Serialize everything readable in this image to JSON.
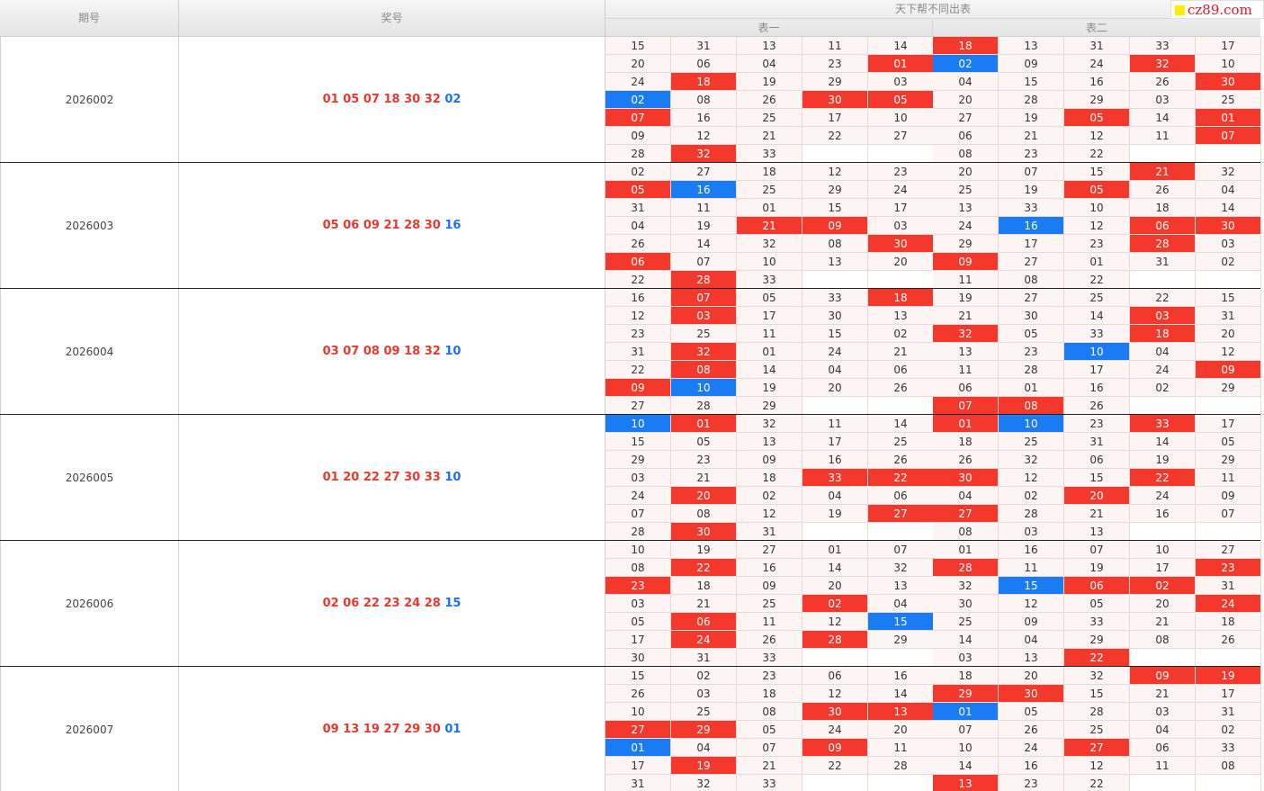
{
  "header": {
    "col_issue": "期号",
    "col_award": "奖号",
    "col_tables": "天下帮不同出表",
    "table1": "表一",
    "table2": "表二"
  },
  "brand": {
    "text": "cz89.com",
    "mark_color": "#ffee00",
    "text_color": "#e0162b"
  },
  "colors": {
    "hit_red": "#f4382b",
    "hit_blue": "#1a7cf5",
    "award_red": "#e8392e",
    "award_blue": "#1a73e8"
  },
  "draws": [
    {
      "issue": "2026002",
      "red": [
        "01",
        "05",
        "07",
        "18",
        "30",
        "32"
      ],
      "blue": "02",
      "table1": [
        [
          "15",
          "31",
          "13",
          "11",
          "14"
        ],
        [
          "20",
          "06",
          "04",
          "23",
          "01"
        ],
        [
          "24",
          "18",
          "19",
          "29",
          "03"
        ],
        [
          "02",
          "08",
          "26",
          "30",
          "05"
        ],
        [
          "07",
          "16",
          "25",
          "17",
          "10"
        ],
        [
          "09",
          "12",
          "21",
          "22",
          "27"
        ],
        [
          "28",
          "32",
          "33",
          "",
          ""
        ]
      ],
      "table2": [
        [
          "18",
          "13",
          "31",
          "33",
          "17"
        ],
        [
          "02",
          "09",
          "24",
          "32",
          "10"
        ],
        [
          "04",
          "15",
          "16",
          "26",
          "30"
        ],
        [
          "20",
          "28",
          "29",
          "03",
          "25"
        ],
        [
          "27",
          "19",
          "05",
          "14",
          "01"
        ],
        [
          "06",
          "21",
          "12",
          "11",
          "07"
        ],
        [
          "08",
          "23",
          "22",
          "",
          ""
        ]
      ]
    },
    {
      "issue": "2026003",
      "red": [
        "05",
        "06",
        "09",
        "21",
        "28",
        "30"
      ],
      "blue": "16",
      "table1": [
        [
          "02",
          "27",
          "18",
          "12",
          "23"
        ],
        [
          "05",
          "16",
          "25",
          "29",
          "24"
        ],
        [
          "31",
          "11",
          "01",
          "15",
          "17"
        ],
        [
          "04",
          "19",
          "21",
          "09",
          "03"
        ],
        [
          "26",
          "14",
          "32",
          "08",
          "30"
        ],
        [
          "06",
          "07",
          "10",
          "13",
          "20"
        ],
        [
          "22",
          "28",
          "33",
          "",
          ""
        ]
      ],
      "table2": [
        [
          "20",
          "07",
          "15",
          "21",
          "32"
        ],
        [
          "25",
          "19",
          "05",
          "26",
          "04"
        ],
        [
          "13",
          "33",
          "10",
          "18",
          "14"
        ],
        [
          "24",
          "16",
          "12",
          "06",
          "30"
        ],
        [
          "29",
          "17",
          "23",
          "28",
          "03"
        ],
        [
          "09",
          "27",
          "01",
          "31",
          "02"
        ],
        [
          "11",
          "08",
          "22",
          "",
          ""
        ]
      ]
    },
    {
      "issue": "2026004",
      "red": [
        "03",
        "07",
        "08",
        "09",
        "18",
        "32"
      ],
      "blue": "10",
      "table1": [
        [
          "16",
          "07",
          "05",
          "33",
          "18"
        ],
        [
          "12",
          "03",
          "17",
          "30",
          "13"
        ],
        [
          "23",
          "25",
          "11",
          "15",
          "02"
        ],
        [
          "31",
          "32",
          "01",
          "24",
          "21"
        ],
        [
          "22",
          "08",
          "14",
          "04",
          "06"
        ],
        [
          "09",
          "10",
          "19",
          "20",
          "26"
        ],
        [
          "27",
          "28",
          "29",
          "",
          ""
        ]
      ],
      "table2": [
        [
          "19",
          "27",
          "25",
          "22",
          "15"
        ],
        [
          "21",
          "30",
          "14",
          "03",
          "31"
        ],
        [
          "32",
          "05",
          "33",
          "18",
          "20"
        ],
        [
          "13",
          "23",
          "10",
          "04",
          "12"
        ],
        [
          "11",
          "28",
          "17",
          "24",
          "09"
        ],
        [
          "06",
          "01",
          "16",
          "02",
          "29"
        ],
        [
          "07",
          "08",
          "26",
          "",
          ""
        ]
      ]
    },
    {
      "issue": "2026005",
      "red": [
        "01",
        "20",
        "22",
        "27",
        "30",
        "33"
      ],
      "blue": "10",
      "table1": [
        [
          "10",
          "01",
          "32",
          "11",
          "14"
        ],
        [
          "15",
          "05",
          "13",
          "17",
          "25"
        ],
        [
          "29",
          "23",
          "09",
          "16",
          "26"
        ],
        [
          "03",
          "21",
          "18",
          "33",
          "22"
        ],
        [
          "24",
          "20",
          "02",
          "04",
          "06"
        ],
        [
          "07",
          "08",
          "12",
          "19",
          "27"
        ],
        [
          "28",
          "30",
          "31",
          "",
          ""
        ]
      ],
      "table2": [
        [
          "01",
          "10",
          "23",
          "33",
          "17"
        ],
        [
          "18",
          "25",
          "31",
          "14",
          "05"
        ],
        [
          "26",
          "32",
          "06",
          "19",
          "29"
        ],
        [
          "30",
          "12",
          "15",
          "22",
          "11"
        ],
        [
          "04",
          "02",
          "20",
          "24",
          "09"
        ],
        [
          "27",
          "28",
          "21",
          "16",
          "07"
        ],
        [
          "08",
          "03",
          "13",
          "",
          ""
        ]
      ]
    },
    {
      "issue": "2026006",
      "red": [
        "02",
        "06",
        "22",
        "23",
        "24",
        "28"
      ],
      "blue": "15",
      "table1": [
        [
          "10",
          "19",
          "27",
          "01",
          "07"
        ],
        [
          "08",
          "22",
          "16",
          "14",
          "32"
        ],
        [
          "23",
          "18",
          "09",
          "20",
          "13"
        ],
        [
          "03",
          "21",
          "25",
          "02",
          "04"
        ],
        [
          "05",
          "06",
          "11",
          "12",
          "15"
        ],
        [
          "17",
          "24",
          "26",
          "28",
          "29"
        ],
        [
          "30",
          "31",
          "33",
          "",
          ""
        ]
      ],
      "table2": [
        [
          "01",
          "16",
          "07",
          "10",
          "27"
        ],
        [
          "28",
          "11",
          "19",
          "17",
          "23"
        ],
        [
          "32",
          "15",
          "06",
          "02",
          "31"
        ],
        [
          "30",
          "12",
          "05",
          "20",
          "24"
        ],
        [
          "25",
          "09",
          "33",
          "21",
          "18"
        ],
        [
          "14",
          "04",
          "29",
          "08",
          "26"
        ],
        [
          "03",
          "13",
          "22",
          "",
          ""
        ]
      ]
    },
    {
      "issue": "2026007",
      "red": [
        "09",
        "13",
        "19",
        "27",
        "29",
        "30"
      ],
      "blue": "01",
      "table1": [
        [
          "15",
          "02",
          "23",
          "06",
          "16"
        ],
        [
          "26",
          "03",
          "18",
          "12",
          "14"
        ],
        [
          "10",
          "25",
          "08",
          "30",
          "13"
        ],
        [
          "27",
          "29",
          "05",
          "24",
          "20"
        ],
        [
          "01",
          "04",
          "07",
          "09",
          "11"
        ],
        [
          "17",
          "19",
          "21",
          "22",
          "28"
        ],
        [
          "31",
          "32",
          "33",
          "",
          ""
        ]
      ],
      "table2": [
        [
          "18",
          "20",
          "32",
          "09",
          "19"
        ],
        [
          "29",
          "30",
          "15",
          "21",
          "17"
        ],
        [
          "01",
          "05",
          "28",
          "03",
          "31"
        ],
        [
          "07",
          "26",
          "25",
          "04",
          "02"
        ],
        [
          "10",
          "24",
          "27",
          "06",
          "33"
        ],
        [
          "14",
          "16",
          "12",
          "11",
          "08"
        ],
        [
          "13",
          "23",
          "22",
          "",
          ""
        ]
      ]
    }
  ]
}
